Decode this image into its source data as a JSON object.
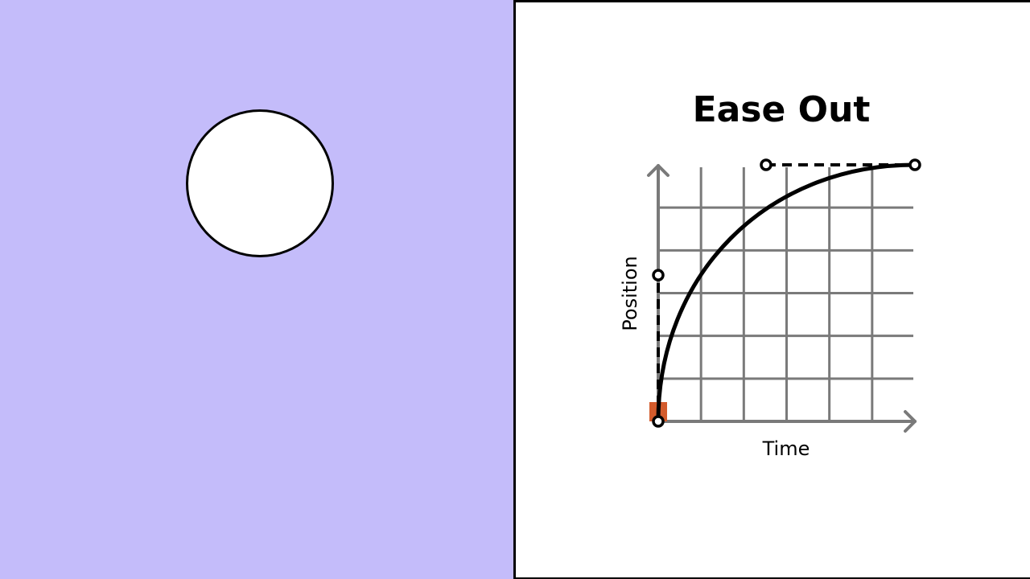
{
  "scene": {
    "background_color": "#C4BCFA",
    "ball_color": "#FFFFFF",
    "accent_color": "#D35B2C",
    "grid_color": "#7A7A7A"
  },
  "chart_data": {
    "type": "line",
    "title": "Ease Out",
    "xlabel": "Time",
    "ylabel": "Position",
    "xlim": [
      0,
      1
    ],
    "ylim": [
      0,
      1
    ],
    "grid": true,
    "grid_divisions": 6,
    "curve": "cubic-bezier",
    "start_point": [
      0,
      0
    ],
    "end_point": [
      1,
      1
    ],
    "control_points": [
      [
        0,
        0.57
      ],
      [
        0.42,
        1
      ]
    ],
    "progress_marker": 0
  }
}
